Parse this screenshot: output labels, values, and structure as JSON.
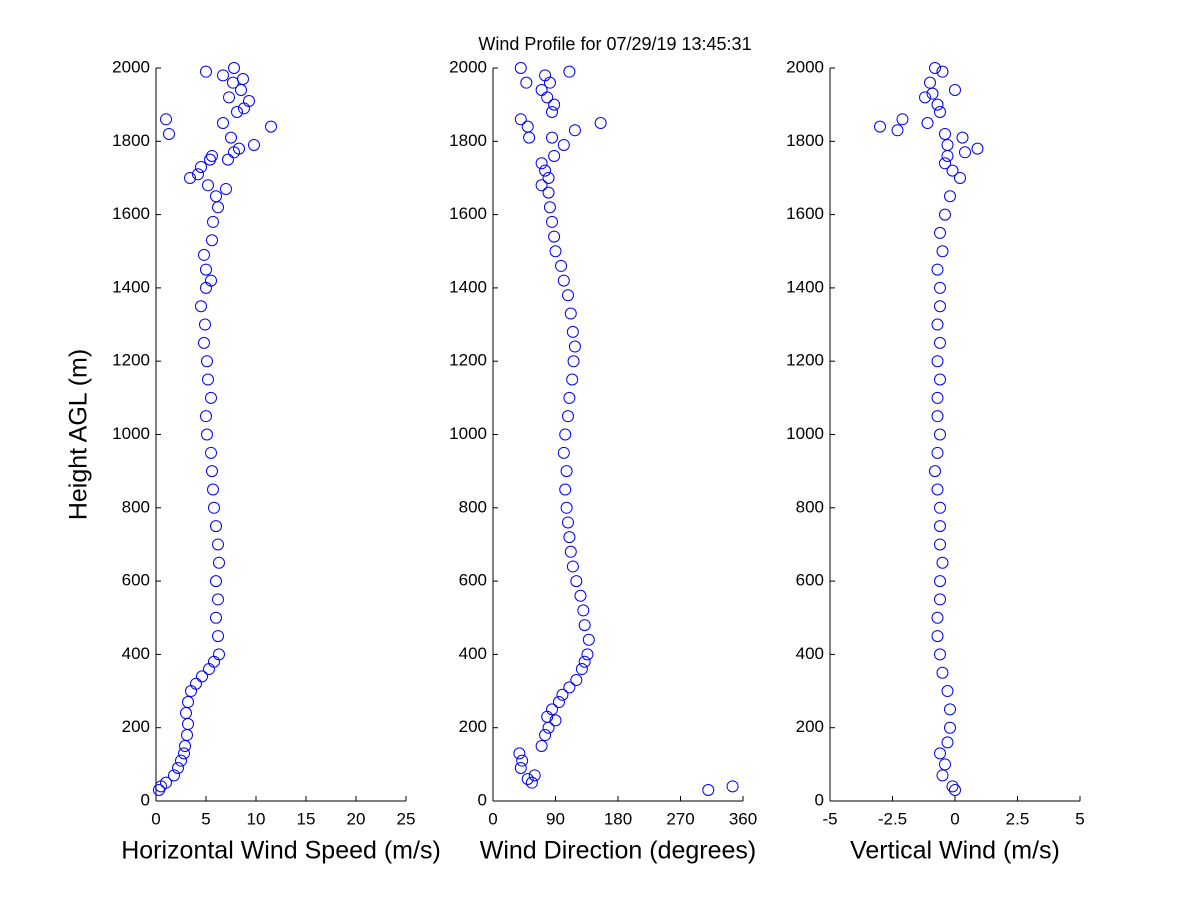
{
  "chart_data": [
    {
      "type": "scatter",
      "title": "Wind Profile for  07/29/19 13:45:31",
      "xlabel": "Horizontal Wind Speed (m/s)",
      "ylabel": "Height AGL (m)",
      "marker": "o",
      "color": "#0000ff",
      "xlim": [
        0,
        25
      ],
      "xticks": [
        0,
        5,
        10,
        15,
        20,
        25
      ],
      "ylim": [
        0,
        2000
      ],
      "yticks": [
        0,
        200,
        400,
        600,
        800,
        1000,
        1200,
        1400,
        1600,
        1800,
        2000
      ],
      "x": [
        0.3,
        0.5,
        1,
        1.8,
        2.2,
        2.5,
        2.8,
        2.9,
        3.1,
        3.2,
        3,
        3.2,
        3.5,
        4,
        4.6,
        5.3,
        5.8,
        6.3,
        6.2,
        6,
        6.2,
        6,
        6.3,
        6.2,
        6,
        5.8,
        5.7,
        5.6,
        5.5,
        5.1,
        5,
        5.5,
        5.2,
        5.1,
        4.8,
        4.9,
        4.5,
        5,
        5.5,
        5,
        4.8,
        5.6,
        5.7,
        6.2,
        6,
        7,
        5.2,
        3.4,
        4.2,
        4.5,
        5.4,
        5.6,
        7.2,
        7.8,
        8.3,
        7.5,
        9.8,
        11.5,
        1,
        1.3,
        6.7,
        8.1,
        8.8,
        7.3,
        9.3,
        8.5,
        7.7,
        8.7,
        6.7,
        5,
        7.8
      ],
      "y": [
        30,
        40,
        50,
        70,
        90,
        110,
        130,
        150,
        180,
        210,
        240,
        270,
        300,
        320,
        340,
        360,
        380,
        400,
        450,
        500,
        550,
        600,
        650,
        700,
        750,
        800,
        850,
        900,
        950,
        1000,
        1050,
        1100,
        1150,
        1200,
        1250,
        1300,
        1350,
        1400,
        1420,
        1450,
        1490,
        1530,
        1580,
        1620,
        1650,
        1670,
        1680,
        1700,
        1710,
        1730,
        1750,
        1760,
        1750,
        1770,
        1780,
        1810,
        1790,
        1840,
        1860,
        1820,
        1850,
        1880,
        1890,
        1920,
        1910,
        1940,
        1960,
        1970,
        1980,
        1990,
        2000
      ]
    },
    {
      "type": "scatter",
      "xlabel": "Wind Direction (degrees)",
      "marker": "o",
      "color": "#0000ff",
      "xlim": [
        0,
        360
      ],
      "xticks": [
        0,
        90,
        180,
        270,
        360
      ],
      "ylim": [
        0,
        2000
      ],
      "yticks": [
        0,
        200,
        400,
        600,
        800,
        1000,
        1200,
        1400,
        1600,
        1800,
        2000
      ],
      "x": [
        56,
        50,
        40,
        42,
        38,
        60,
        70,
        75,
        80,
        78,
        90,
        85,
        95,
        100,
        110,
        120,
        128,
        132,
        136,
        138,
        132,
        130,
        126,
        120,
        115,
        112,
        110,
        108,
        106,
        104,
        106,
        102,
        104,
        108,
        110,
        114,
        116,
        118,
        115,
        112,
        108,
        102,
        98,
        90,
        88,
        85,
        82,
        80,
        70,
        80,
        75,
        70,
        88,
        102,
        85,
        52,
        40,
        50,
        118,
        155,
        85,
        88,
        78,
        70,
        82,
        48,
        75,
        40,
        110,
        310,
        345
      ],
      "y": [
        50,
        60,
        90,
        110,
        130,
        70,
        150,
        180,
        200,
        230,
        220,
        250,
        270,
        290,
        310,
        330,
        360,
        380,
        400,
        440,
        480,
        520,
        560,
        600,
        640,
        680,
        720,
        760,
        800,
        850,
        900,
        950,
        1000,
        1050,
        1100,
        1150,
        1200,
        1240,
        1280,
        1330,
        1380,
        1420,
        1460,
        1500,
        1540,
        1580,
        1620,
        1660,
        1680,
        1700,
        1720,
        1740,
        1760,
        1790,
        1810,
        1810,
        1860,
        1840,
        1830,
        1850,
        1880,
        1900,
        1920,
        1940,
        1960,
        1960,
        1980,
        2000,
        1990,
        30,
        40
      ]
    },
    {
      "type": "scatter",
      "xlabel": "Vertical Wind (m/s)",
      "marker": "o",
      "color": "#0000ff",
      "xlim": [
        -5,
        5
      ],
      "xticks": [
        -5,
        {
          "value": -2.5,
          "label": "-2.5"
        },
        0,
        2.5,
        5
      ],
      "ylim": [
        0,
        2000
      ],
      "yticks": [
        0,
        200,
        400,
        600,
        800,
        1000,
        1200,
        1400,
        1600,
        1800,
        2000
      ],
      "x": [
        0,
        -0.1,
        -0.5,
        -0.4,
        -0.6,
        -0.3,
        -0.2,
        -0.2,
        -0.3,
        -0.5,
        -0.6,
        -0.7,
        -0.7,
        -0.6,
        -0.6,
        -0.5,
        -0.6,
        -0.6,
        -0.6,
        -0.7,
        -0.8,
        -0.7,
        -0.6,
        -0.7,
        -0.7,
        -0.6,
        -0.7,
        -0.6,
        -0.7,
        -0.6,
        -0.6,
        -0.7,
        -0.5,
        -0.6,
        -0.4,
        -0.2,
        0.2,
        -0.1,
        -0.4,
        -0.3,
        0.9,
        0.4,
        0.3,
        -0.3,
        -0.4,
        -3,
        -2.3,
        -2.1,
        -1.1,
        -0.6,
        -0.7,
        -1.2,
        -0.9,
        0,
        -1,
        -0.5,
        -0.8
      ],
      "y": [
        30,
        40,
        70,
        100,
        130,
        160,
        200,
        250,
        300,
        350,
        400,
        450,
        500,
        550,
        600,
        650,
        700,
        750,
        800,
        850,
        900,
        950,
        1000,
        1050,
        1100,
        1150,
        1200,
        1250,
        1300,
        1350,
        1400,
        1450,
        1500,
        1550,
        1600,
        1650,
        1700,
        1720,
        1740,
        1760,
        1780,
        1770,
        1810,
        1790,
        1820,
        1840,
        1830,
        1860,
        1850,
        1880,
        1900,
        1920,
        1930,
        1940,
        1960,
        1990,
        2000
      ]
    }
  ]
}
